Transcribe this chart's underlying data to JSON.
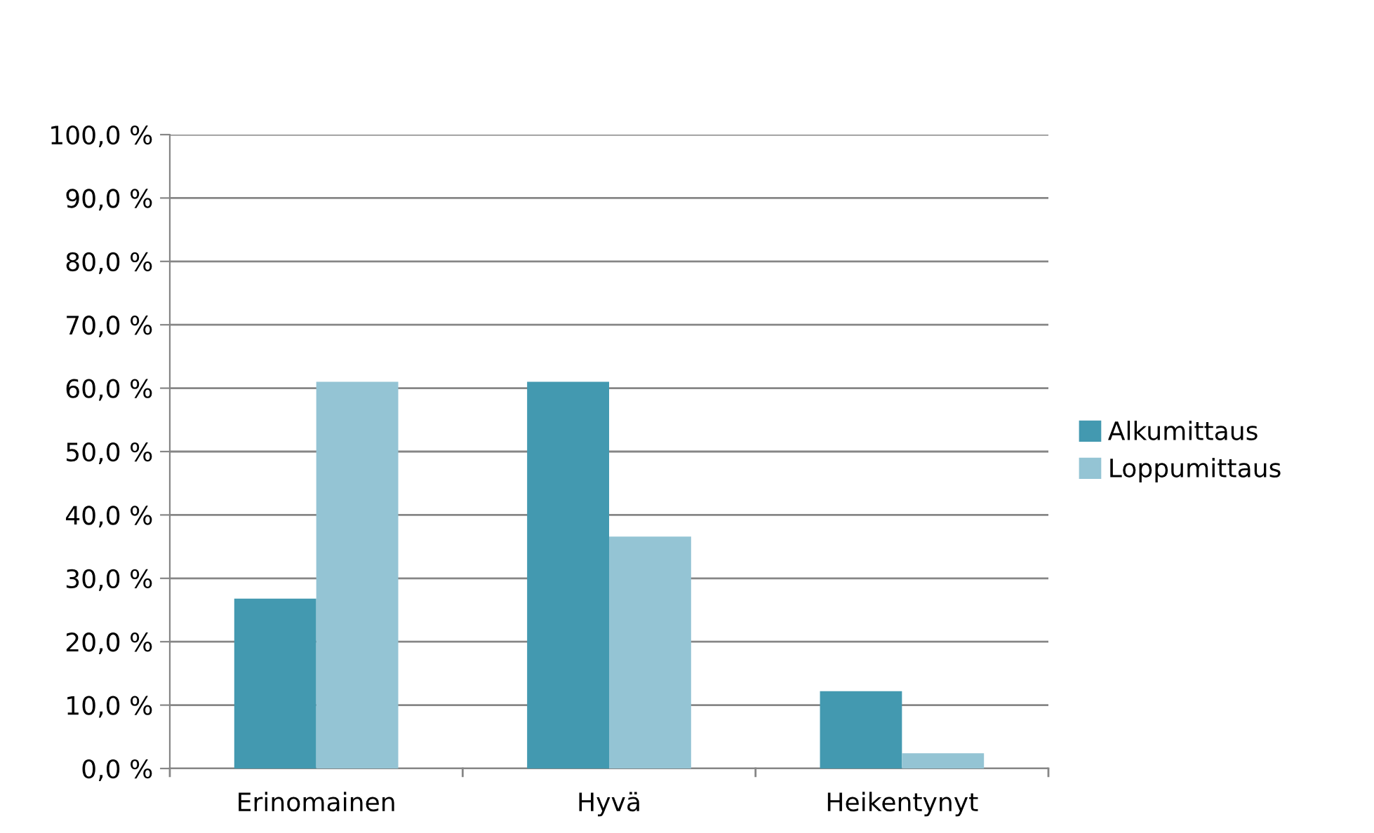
{
  "chart_data": {
    "type": "bar",
    "categories": [
      "Erinomainen",
      "Hyvä",
      "Heikentynyt"
    ],
    "series": [
      {
        "name": "Alkumittaus",
        "color": "#4399b0",
        "values": [
          26.8,
          61.0,
          12.2
        ]
      },
      {
        "name": "Loppumittaus",
        "color": "#94c4d4",
        "values": [
          61.0,
          36.6,
          2.4
        ]
      }
    ],
    "ylim": [
      0,
      100
    ],
    "yticks": [
      {
        "value": 0,
        "label": "0,0 %"
      },
      {
        "value": 10,
        "label": "10,0 %"
      },
      {
        "value": 20,
        "label": "20,0 %"
      },
      {
        "value": 30,
        "label": "30,0 %"
      },
      {
        "value": 40,
        "label": "40,0 %"
      },
      {
        "value": 50,
        "label": "50,0 %"
      },
      {
        "value": 60,
        "label": "60,0 %"
      },
      {
        "value": 70,
        "label": "70,0 %"
      },
      {
        "value": 80,
        "label": "80,0 %"
      },
      {
        "value": 90,
        "label": "90,0 %"
      },
      {
        "value": 100,
        "label": "100,0 %"
      }
    ],
    "grid": "y",
    "legend": "right"
  }
}
